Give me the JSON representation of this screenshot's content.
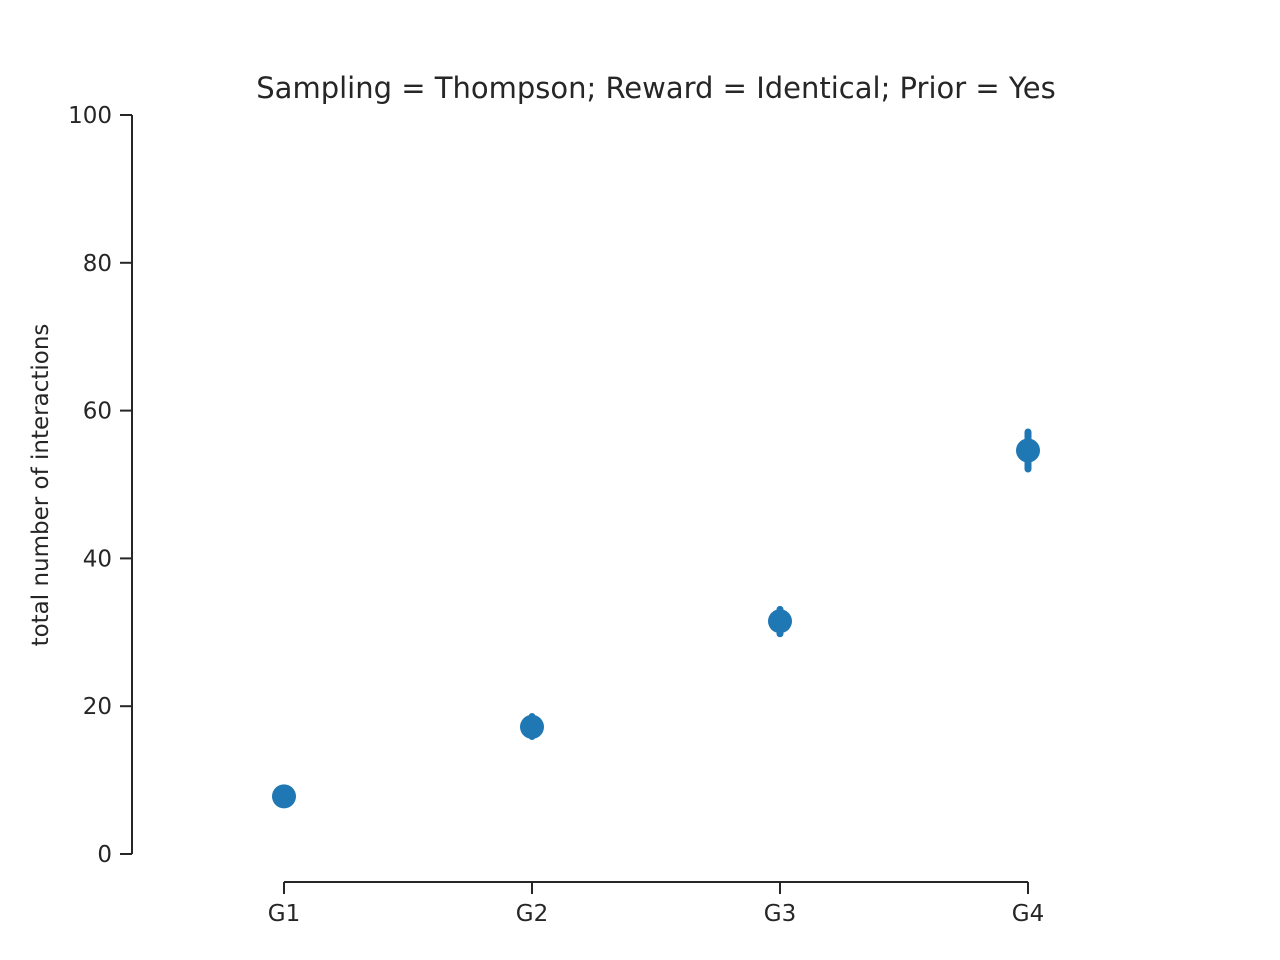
{
  "chart_data": {
    "type": "scatter",
    "title": "Sampling = Thompson; Reward = Identical; Prior = Yes",
    "xlabel": "",
    "ylabel": "total number of interactions",
    "categories": [
      "G1",
      "G2",
      "G3",
      "G4"
    ],
    "ylim": [
      0,
      100
    ],
    "yticks": [
      0,
      20,
      40,
      60,
      80,
      100
    ],
    "grid": false,
    "color": "#1f77b4",
    "series": [
      {
        "values": [
          7.8,
          17.2,
          31.5,
          54.6
        ],
        "ci_low": [
          7.3,
          15.9,
          29.8,
          52.1
        ],
        "ci_high": [
          8.3,
          18.6,
          33.1,
          57.1
        ]
      }
    ]
  }
}
